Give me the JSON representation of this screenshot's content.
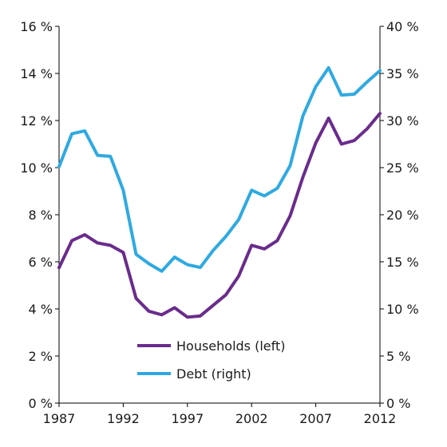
{
  "chart_data": {
    "type": "line",
    "grid": false,
    "legend": "bottom-center",
    "x": [
      1987,
      1988,
      1989,
      1990,
      1991,
      1992,
      1993,
      1994,
      1995,
      1996,
      1997,
      1998,
      1999,
      2000,
      2001,
      2002,
      2003,
      2004,
      2005,
      2006,
      2007,
      2008,
      2009,
      2010,
      2011,
      2012
    ],
    "x_ticks": [
      1987,
      1992,
      1997,
      2002,
      2007,
      2012
    ],
    "x_tick_labels": [
      "1987",
      "1992",
      "1997",
      "2002",
      "2007",
      "2012"
    ],
    "xlim": [
      1987,
      2012
    ],
    "y_left": {
      "lim": [
        0,
        16
      ],
      "ticks": [
        0,
        2,
        4,
        6,
        8,
        10,
        12,
        14,
        16
      ],
      "tick_labels": [
        "0 %",
        "2 %",
        "4 %",
        "6 %",
        "8 %",
        "10 %",
        "12 %",
        "14 %",
        "16 %"
      ]
    },
    "y_right": {
      "lim": [
        0,
        40
      ],
      "ticks": [
        0,
        5,
        10,
        15,
        20,
        25,
        30,
        35,
        40
      ],
      "tick_labels": [
        "0 %",
        "5 %",
        "10 %",
        "15 %",
        "20 %",
        "25 %",
        "30 %",
        "35 %",
        "40 %"
      ]
    },
    "series": [
      {
        "name": "Households (left)",
        "axis": "left",
        "color": "#6a2c8c",
        "values": [
          5.75,
          6.9,
          7.15,
          6.8,
          6.7,
          6.4,
          4.45,
          3.9,
          3.75,
          4.05,
          3.65,
          3.7,
          4.15,
          4.6,
          5.4,
          6.7,
          6.55,
          6.9,
          7.95,
          9.6,
          11.05,
          12.1,
          11.0,
          11.15,
          11.65,
          12.3
        ]
      },
      {
        "name": "Debt (right)",
        "axis": "right",
        "color": "#2fa9e1",
        "values": [
          25.1,
          28.6,
          28.9,
          26.3,
          26.2,
          22.6,
          15.8,
          14.8,
          14.0,
          15.5,
          14.7,
          14.4,
          16.2,
          17.7,
          19.5,
          22.6,
          22.0,
          22.8,
          25.2,
          30.5,
          33.6,
          35.6,
          32.7,
          32.8,
          34.1,
          35.3
        ]
      }
    ]
  }
}
